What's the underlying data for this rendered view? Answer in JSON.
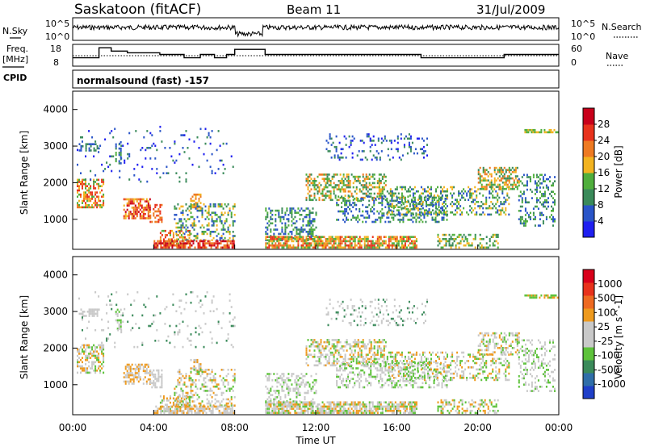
{
  "header": {
    "site": "Saskatoon (fitACF)",
    "beam": "Beam 11",
    "date": "31/Jul/2009"
  },
  "top_panels": {
    "nsky_label": "N.Sky",
    "nsky_ticks": [
      "10^5",
      "10^0"
    ],
    "nsearch_label": "N.Search",
    "nsearch_ticks": [
      "10^5",
      "10^0"
    ],
    "freq_label_line1": "Freq.",
    "freq_label_line2": "[MHz]",
    "freq_ticks": [
      "18",
      "8"
    ],
    "nave_label": "Nave",
    "nave_ticks": [
      "60",
      "0"
    ],
    "cpid_label": "CPID",
    "cpid_text": "normalsound (fast) -157"
  },
  "colors": {
    "power_scale": [
      "#1f1ff0",
      "#2a55c8",
      "#3a8a5a",
      "#4fae3c",
      "#f2b320",
      "#ee7a22",
      "#e8321c",
      "#c8001a"
    ],
    "velocity_scale": [
      "#1f3fc8",
      "#2f6ea8",
      "#3a8a5a",
      "#5dc23a",
      "#c9c9c9",
      "#c9c9c9",
      "#ee9a1e",
      "#ee6a22",
      "#e8321c",
      "#d8001a"
    ]
  },
  "chart_data": [
    {
      "type": "heatmap",
      "name": "power",
      "ylabel": "Slant Range [km]",
      "xlabel": "Time UT",
      "x_ticks": [
        "00:00",
        "04:00",
        "08:00",
        "12:00",
        "16:00",
        "20:00",
        "00:00"
      ],
      "xlim": [
        0,
        24
      ],
      "ylim": [
        180,
        4500
      ],
      "y_ticks": [
        1000,
        2000,
        3000,
        4000
      ],
      "colorbar_label": "Power [dB]",
      "colorbar_ticks": [
        "28",
        "24",
        "20",
        "16",
        "12",
        "8",
        "4"
      ],
      "colorbar_range": [
        0,
        30
      ]
    },
    {
      "type": "heatmap",
      "name": "velocity",
      "ylabel": "Slant Range [km]",
      "xlabel": "Time UT",
      "x_ticks": [
        "00:00",
        "04:00",
        "08:00",
        "12:00",
        "16:00",
        "20:00",
        "00:00"
      ],
      "xlim": [
        0,
        24
      ],
      "ylim": [
        180,
        4500
      ],
      "y_ticks": [
        1000,
        2000,
        3000,
        4000
      ],
      "colorbar_label": "Velocity [m s^-1]",
      "colorbar_ticks": [
        "1000",
        "500",
        "100",
        "25",
        "-25",
        "-100",
        "-500",
        "-1000"
      ]
    },
    {
      "type": "line",
      "name": "frequency",
      "note_series": "step trace of operating frequency (MHz) vs UT",
      "x": [
        0,
        1.3,
        1.3,
        1.9,
        1.9,
        2.7,
        2.7,
        4.3,
        4.3,
        5.5,
        5.5,
        6.3,
        6.3,
        7.0,
        7.0,
        7.6,
        7.6,
        8.0,
        8.0,
        9.5,
        9.5,
        17.2,
        17.2,
        21.3,
        21.3,
        24
      ],
      "y": [
        11,
        11,
        17,
        17,
        15,
        15,
        14,
        14,
        13,
        13,
        11,
        11,
        13,
        13,
        11,
        11,
        13,
        13,
        16,
        16,
        13,
        13,
        11,
        11,
        13,
        13
      ]
    }
  ],
  "footer": {
    "x_axis_title": "Time UT"
  }
}
